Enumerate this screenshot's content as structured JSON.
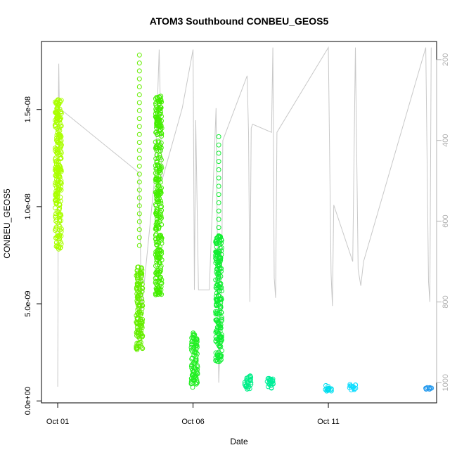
{
  "chart_data": {
    "type": "scatter",
    "title": "ATOM3 Southbound CONBEU_GEOS5",
    "xlabel": "Date",
    "ylabel": "CONBEU_GEOS5",
    "x_ticks": [
      "Oct 01",
      "Oct 06",
      "Oct 11"
    ],
    "x_tick_days": [
      1,
      6,
      11
    ],
    "xlim_days": [
      0.4,
      15.0
    ],
    "y_ticks": [
      "0.0e+00",
      "5.0e-09",
      "1.0e-08",
      "1.5e-08"
    ],
    "y_tick_values": [
      0,
      5e-09,
      1e-08,
      1.5e-08
    ],
    "ylim": [
      -1e-10,
      1.85e-08
    ],
    "y2_ticks": [
      "200",
      "400",
      "600",
      "800",
      "1000"
    ],
    "y2_tick_values": [
      200,
      400,
      600,
      800,
      1000
    ],
    "y2lim_reversed": [
      1050,
      155
    ],
    "grid": false,
    "point_style": "open-circle",
    "clusters": [
      {
        "day": 1.02,
        "ymin": 7.6e-09,
        "ymax": 1.55e-08,
        "color": "#aaff00"
      },
      {
        "day": 4.02,
        "ymin": 2.6e-09,
        "ymax": 7e-09,
        "color": "#66ee00"
      },
      {
        "day": 4.02,
        "ymin": 8e-09,
        "ymax": 1.78e-08,
        "color": "#66ee00",
        "sparse": true
      },
      {
        "day": 4.73,
        "ymin": 5.4e-09,
        "ymax": 1.57e-08,
        "color": "#44ee00"
      },
      {
        "day": 6.05,
        "ymin": 7e-10,
        "ymax": 3.5e-09,
        "color": "#22ee22"
      },
      {
        "day": 6.95,
        "ymin": 2e-09,
        "ymax": 8.5e-09,
        "color": "#11ee33"
      },
      {
        "day": 6.95,
        "ymin": 8.5e-09,
        "ymax": 1.36e-08,
        "color": "#11ee33",
        "sparse": true
      },
      {
        "day": 8.02,
        "ymin": 6e-10,
        "ymax": 1.3e-09,
        "color": "#00ee88"
      },
      {
        "day": 8.85,
        "ymin": 6e-10,
        "ymax": 1.2e-09,
        "color": "#00ee99"
      },
      {
        "day": 11.0,
        "ymin": 5e-10,
        "ymax": 8e-10,
        "color": "#00ddee"
      },
      {
        "day": 11.9,
        "ymin": 5.5e-10,
        "ymax": 8.5e-10,
        "color": "#11ddff"
      },
      {
        "day": 14.7,
        "ymin": 6e-10,
        "ymax": 7e-10,
        "color": "#2299ee"
      }
    ],
    "pressure_track": [
      [
        1.0,
        1010
      ],
      [
        1.01,
        800
      ],
      [
        1.02,
        330
      ],
      [
        1.04,
        210
      ],
      [
        1.06,
        320
      ],
      [
        4.0,
        480
      ],
      [
        4.1,
        820
      ],
      [
        4.6,
        480
      ],
      [
        4.75,
        175
      ],
      [
        4.85,
        500
      ],
      [
        5.6,
        320
      ],
      [
        6.0,
        175
      ],
      [
        6.05,
        770
      ],
      [
        6.1,
        350
      ],
      [
        6.2,
        770
      ],
      [
        6.6,
        770
      ],
      [
        6.85,
        320
      ],
      [
        6.95,
        1000
      ],
      [
        7.05,
        800
      ],
      [
        7.1,
        400
      ],
      [
        8.0,
        240
      ],
      [
        8.05,
        380
      ],
      [
        8.1,
        800
      ],
      [
        8.15,
        370
      ],
      [
        8.2,
        360
      ],
      [
        8.9,
        380
      ],
      [
        8.95,
        170
      ],
      [
        9.0,
        740
      ],
      [
        9.05,
        790
      ],
      [
        9.1,
        380
      ],
      [
        11.0,
        170
      ],
      [
        11.1,
        730
      ],
      [
        11.15,
        810
      ],
      [
        11.2,
        560
      ],
      [
        11.9,
        700
      ],
      [
        12.0,
        170
      ],
      [
        12.1,
        720
      ],
      [
        12.2,
        760
      ],
      [
        12.3,
        700
      ],
      [
        14.6,
        170
      ],
      [
        14.7,
        750
      ],
      [
        14.75,
        800
      ],
      [
        14.8,
        170
      ]
    ]
  }
}
